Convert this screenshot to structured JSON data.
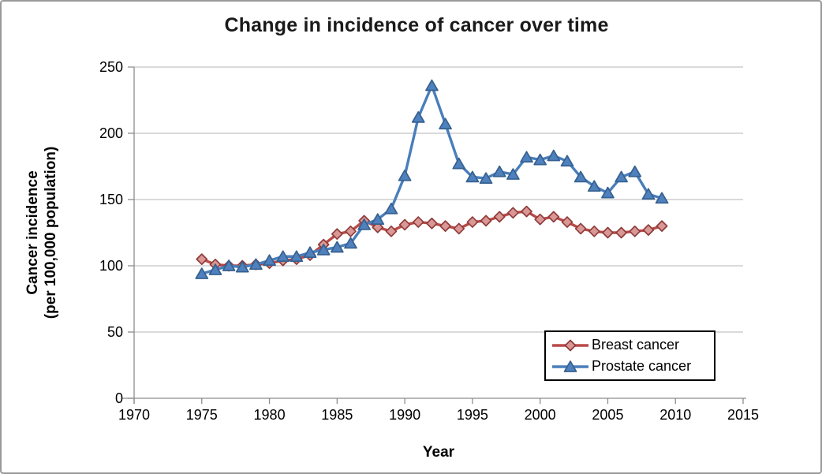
{
  "window": {
    "background": "#FFFFFF",
    "frame_border_color": "#9A9A9A"
  },
  "chart_data": {
    "type": "line",
    "title": "Change in incidence of cancer over time",
    "xlabel": "Year",
    "ylabel_line1": "Cancer incidence",
    "ylabel_line2": "(per 100,000 population)",
    "xlim": [
      1970,
      2015
    ],
    "ylim": [
      0,
      250
    ],
    "x_ticks": [
      1970,
      1975,
      1980,
      1985,
      1990,
      1995,
      2000,
      2005,
      2010,
      2015
    ],
    "y_ticks": [
      0,
      50,
      100,
      150,
      200,
      250
    ],
    "grid": true,
    "legend": {
      "position": "bottom-right",
      "border_color": "#000000",
      "background": "#FFFFFF"
    },
    "colors": {
      "gridline": "#C4C4C4",
      "axis": "#8C8C8C",
      "tick_text": "#000000"
    },
    "x": [
      1975,
      1976,
      1977,
      1978,
      1979,
      1980,
      1981,
      1982,
      1983,
      1984,
      1985,
      1986,
      1987,
      1988,
      1989,
      1990,
      1991,
      1992,
      1993,
      1994,
      1995,
      1996,
      1997,
      1998,
      1999,
      2000,
      2001,
      2002,
      2003,
      2004,
      2005,
      2006,
      2007,
      2008,
      2009
    ],
    "series": [
      {
        "name": "Breast cancer",
        "marker": "diamond",
        "line_color": "#B94A48",
        "marker_fill": "#D99795",
        "marker_stroke": "#8E3B39",
        "values": [
          105,
          101,
          100,
          100,
          101,
          102,
          104,
          105,
          108,
          116,
          124,
          126,
          134,
          129,
          126,
          131,
          133,
          132,
          130,
          128,
          133,
          134,
          137,
          140,
          141,
          135,
          137,
          133,
          128,
          126,
          125,
          125,
          126,
          127,
          130
        ]
      },
      {
        "name": "Prostate cancer",
        "marker": "triangle",
        "line_color": "#4A7EBB",
        "marker_fill": "#4E81BD",
        "marker_stroke": "#36608F",
        "values": [
          94,
          97,
          100,
          99,
          101,
          104,
          107,
          107,
          110,
          112,
          114,
          117,
          131,
          135,
          143,
          168,
          212,
          236,
          207,
          177,
          167,
          166,
          171,
          169,
          182,
          180,
          183,
          179,
          167,
          160,
          155,
          167,
          171,
          154,
          151
        ]
      }
    ]
  }
}
